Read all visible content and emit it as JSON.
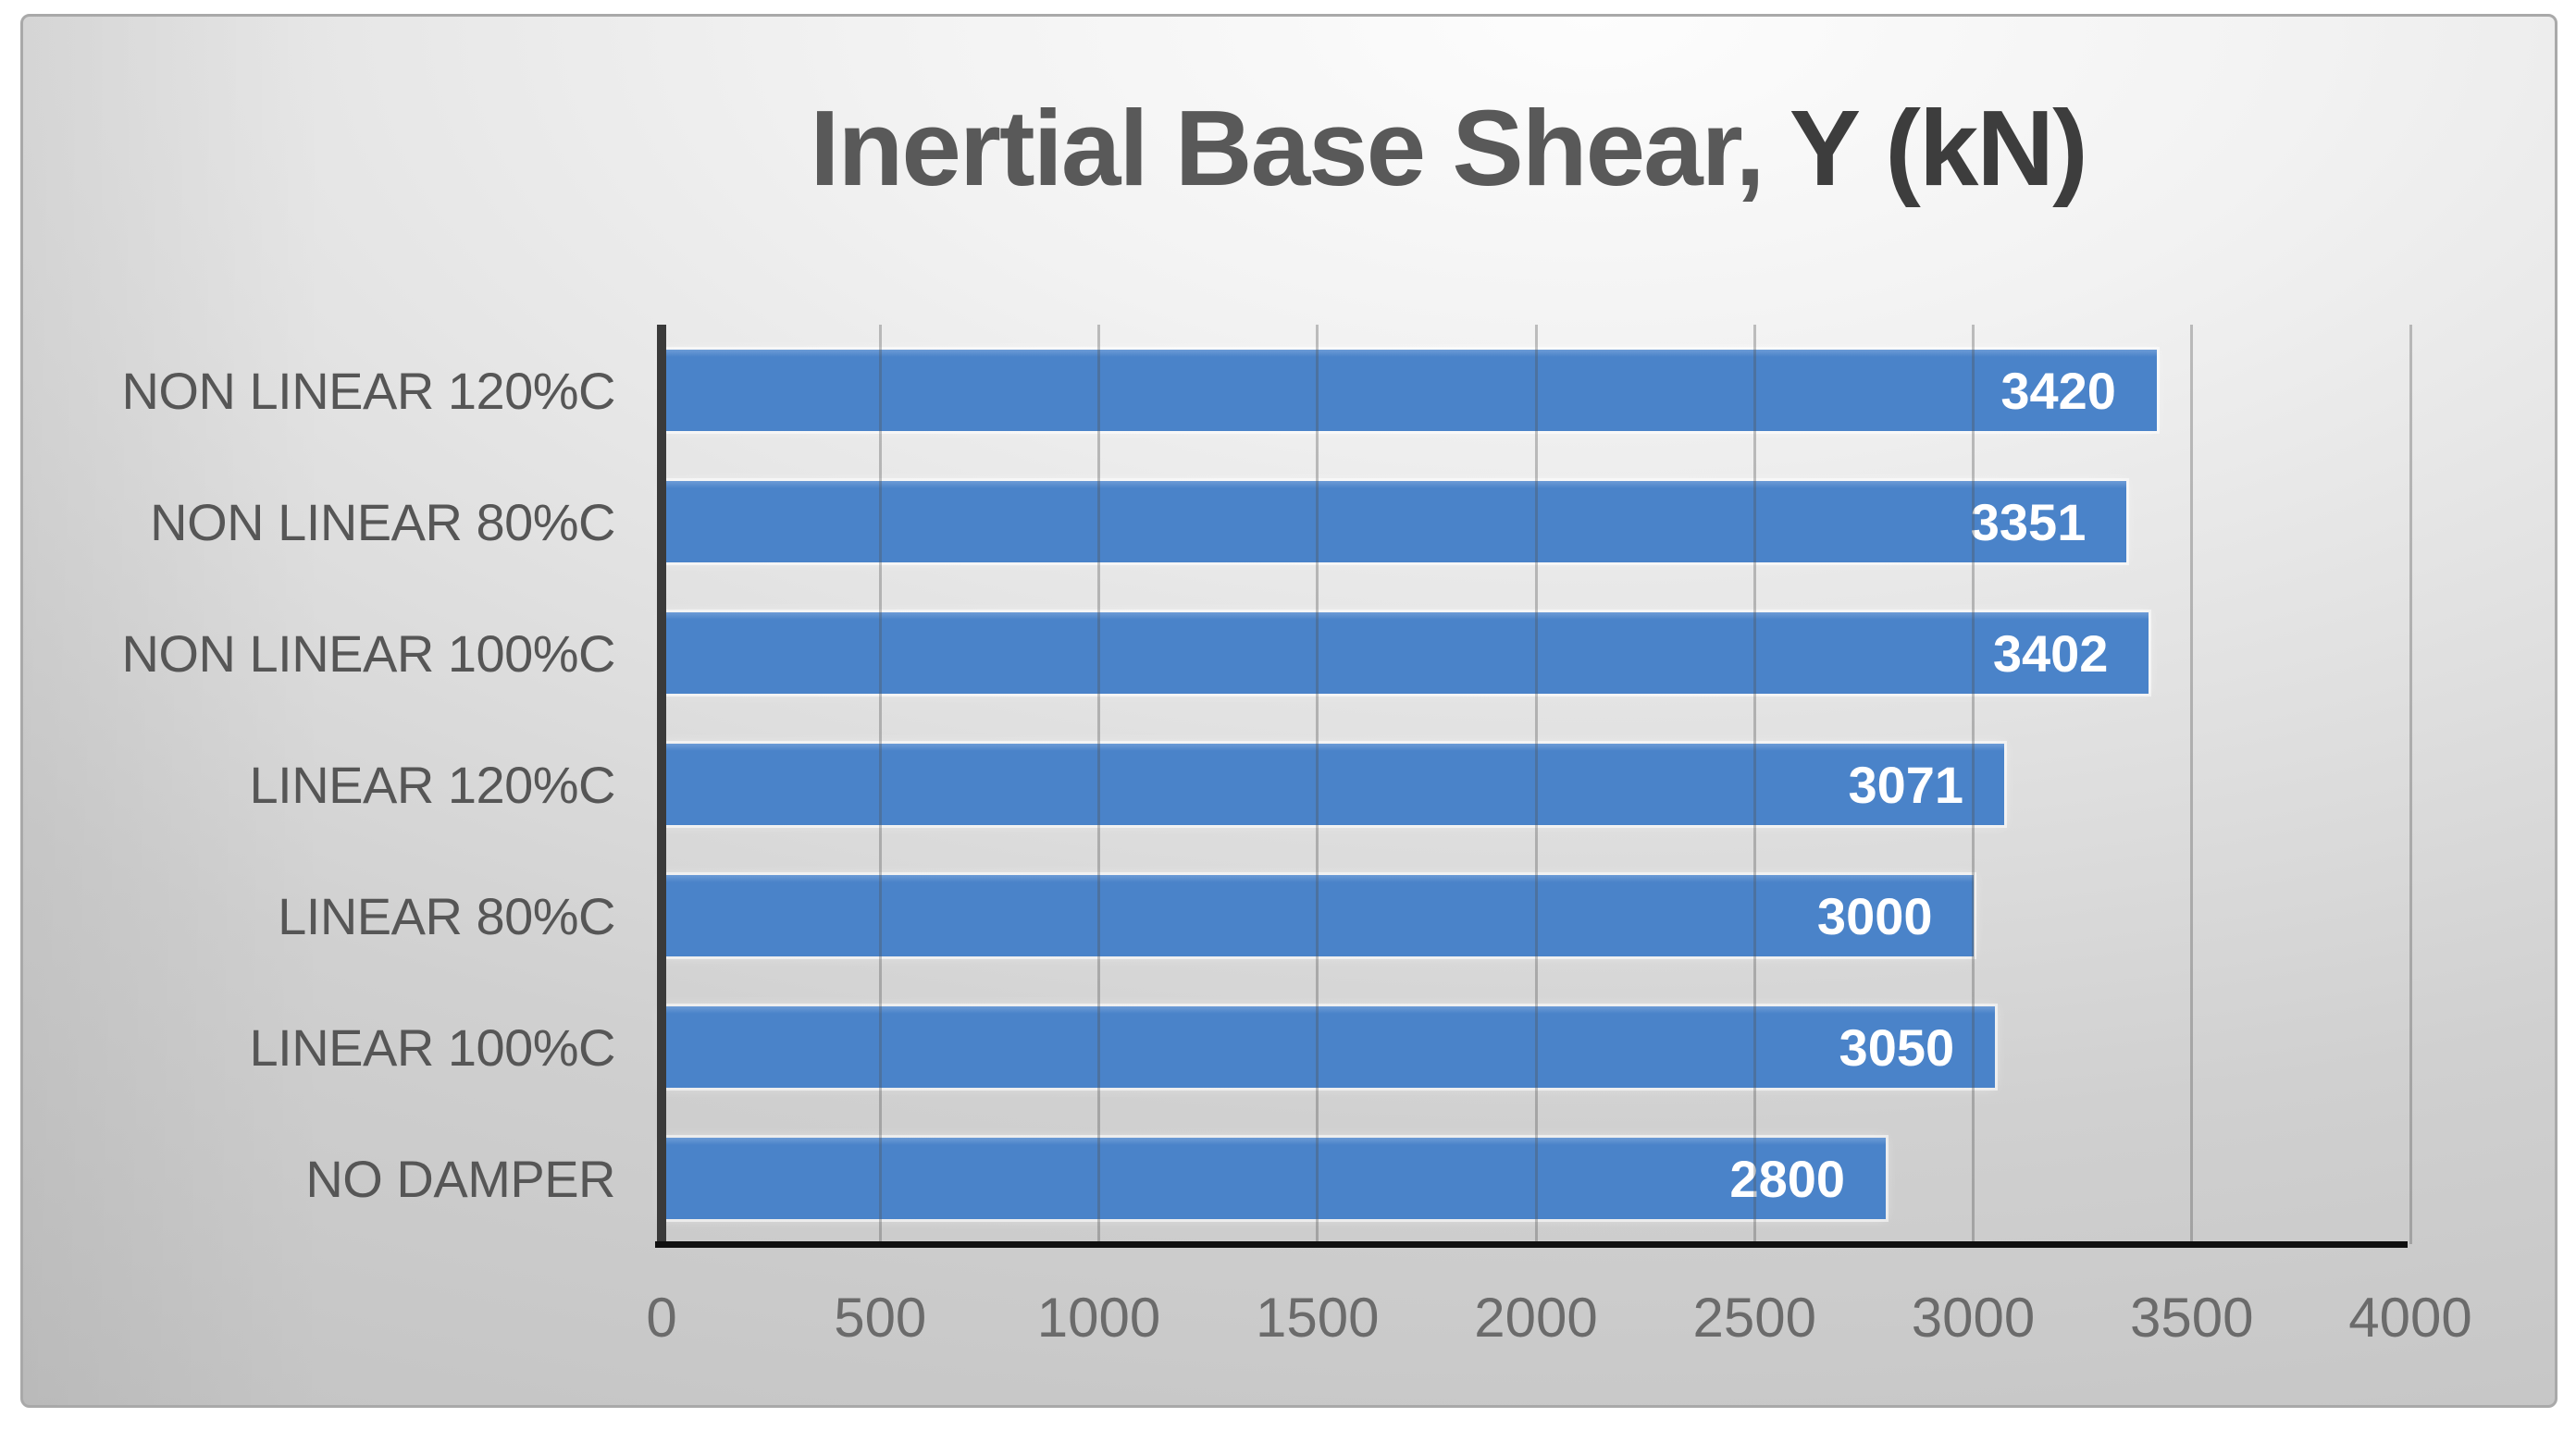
{
  "chart_data": {
    "type": "bar",
    "orientation": "horizontal",
    "title": "Inertial Base Shear, Y (kN)",
    "title_parts": [
      "Inertial Base Shear, ",
      "Y (kN)"
    ],
    "categories": [
      "NON LINEAR 120%C",
      "NON LINEAR 80%C",
      "NON LINEAR 100%C",
      "LINEAR 120%C",
      "LINEAR 80%C",
      "LINEAR 100%C",
      "NO DAMPER"
    ],
    "values": [
      3420,
      3351,
      3402,
      3071,
      3000,
      3050,
      2800
    ],
    "data_labels": [
      "3420",
      "3351",
      "3402",
      "3071",
      "3000",
      "3050",
      "2800"
    ],
    "xlabel": "",
    "ylabel": "",
    "xlim": [
      0,
      4000
    ],
    "xticks": [
      0,
      500,
      1000,
      1500,
      2000,
      2500,
      3000,
      3500,
      4000
    ],
    "grid": true,
    "legend": false,
    "colors": {
      "bar": "#4a83c9",
      "bar_halo": "rgba(255,255,255,0.55)",
      "value_label": "#ffffff",
      "title_primary": "#595959",
      "title_secondary": "#3d3d3d",
      "category_label": "#565656",
      "tick_label": "#6b6b6b",
      "y_axis_line": "#3a3a3a",
      "x_axis_line": "#101010",
      "gridline": "#b3b3b3",
      "frame_border": "#a9a9a9"
    }
  }
}
